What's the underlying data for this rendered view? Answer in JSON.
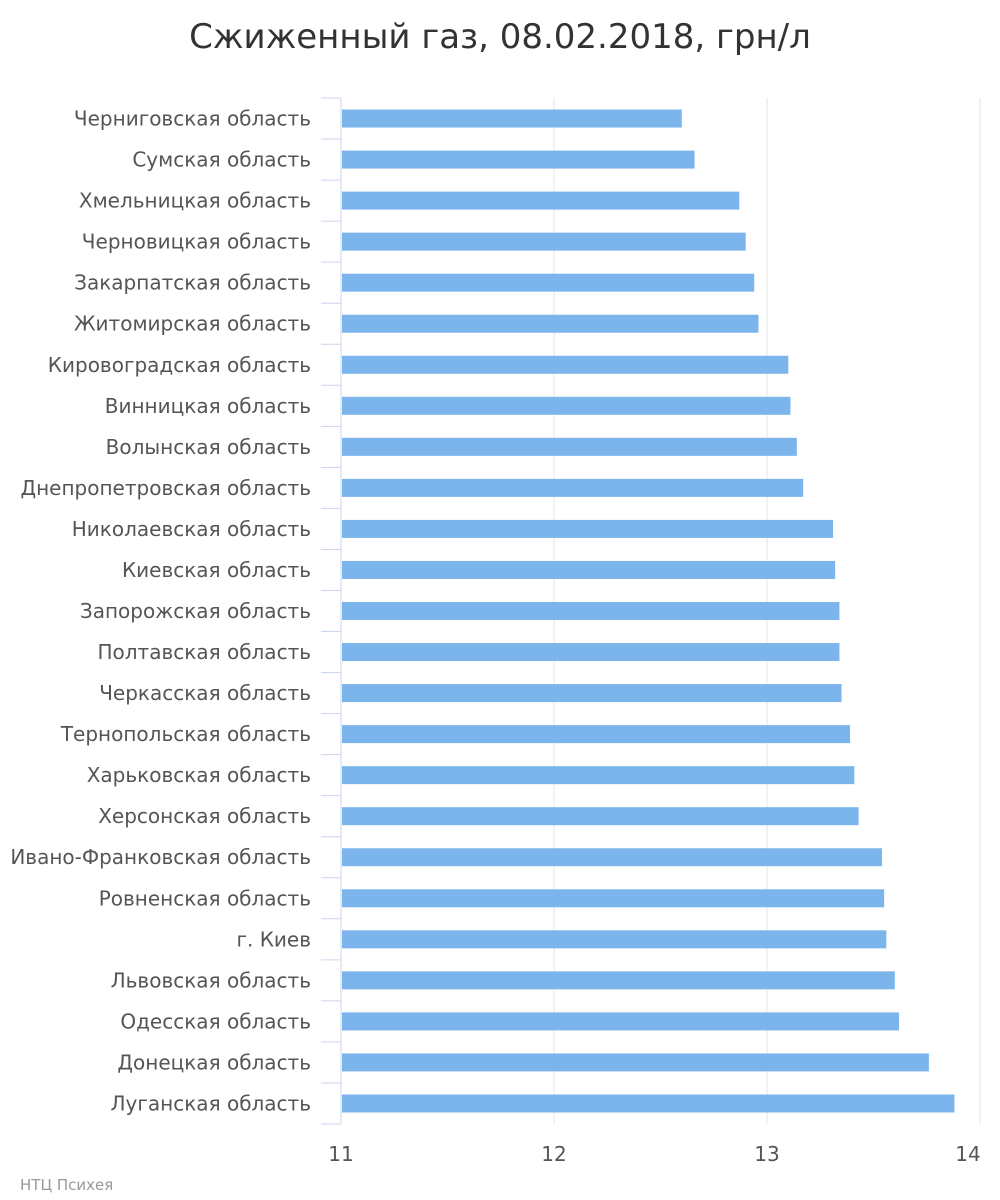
{
  "chart_data": {
    "type": "bar",
    "orientation": "horizontal",
    "title": "Сжиженный газ, 08.02.2018, грн/л",
    "xlabel": "",
    "ylabel": "",
    "xlim": [
      11,
      14
    ],
    "x_ticks": [
      "11",
      "12",
      "13",
      "14"
    ],
    "grid": true,
    "bar_color": "#7cb5ec",
    "categories": [
      "Черниговская область",
      "Сумская область",
      "Хмельницкая область",
      "Черновицкая область",
      "Закарпатская область",
      "Житомирская область",
      "Кировоградская область",
      "Винницкая область",
      "Волынская область",
      "Днепропетровская область",
      "Николаевская область",
      "Киевская область",
      "Запорожская область",
      "Полтавская область",
      "Черкасская область",
      "Тернопольская область",
      "Харьковская область",
      "Херсонская область",
      "Ивано-Франковская область",
      "Ровненская область",
      "г. Киев",
      "Львовская область",
      "Одесская область",
      "Донецкая область",
      "Луганская область"
    ],
    "values": [
      12.6,
      12.66,
      12.87,
      12.9,
      12.94,
      12.96,
      13.1,
      13.11,
      13.14,
      13.17,
      13.31,
      13.32,
      13.34,
      13.34,
      13.35,
      13.39,
      13.41,
      13.43,
      13.54,
      13.55,
      13.56,
      13.6,
      13.62,
      13.76,
      13.88
    ],
    "credit": "НТЦ Психея"
  }
}
